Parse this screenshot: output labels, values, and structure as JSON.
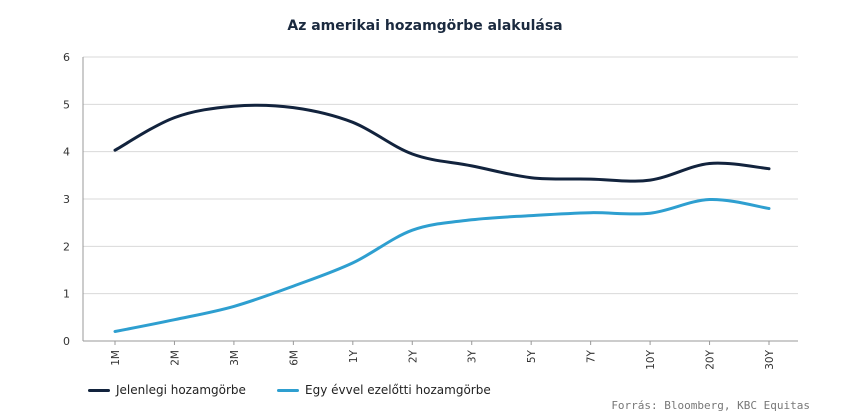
{
  "colors": {
    "current": "#12233d",
    "year_ago": "#2e9fd0",
    "grid": "#d9d9d9",
    "axis": "#999999"
  },
  "chart_data": {
    "type": "line",
    "title": "Az amerikai hozamgörbe alakulása",
    "categories": [
      "1M",
      "2M",
      "3M",
      "6M",
      "1Y",
      "2Y",
      "3Y",
      "5Y",
      "7Y",
      "10Y",
      "20Y",
      "30Y"
    ],
    "series": [
      {
        "name": "Jelenlegi hozamgörbe",
        "values": [
          4.03,
          4.72,
          4.96,
          4.93,
          4.62,
          3.95,
          3.7,
          3.45,
          3.42,
          3.4,
          3.75,
          3.64
        ]
      },
      {
        "name": "Egy évvel ezelőtti hozamgörbe",
        "values": [
          0.2,
          0.45,
          0.73,
          1.16,
          1.65,
          2.34,
          2.56,
          2.65,
          2.71,
          2.7,
          2.99,
          2.8
        ]
      }
    ],
    "yticks": [
      0,
      1,
      2,
      3,
      4,
      5,
      6
    ],
    "ylim": [
      0,
      6
    ],
    "grid": true,
    "legend_position": "bottom-left",
    "source": "Forrás: Bloomberg,  KBC Equitas"
  }
}
